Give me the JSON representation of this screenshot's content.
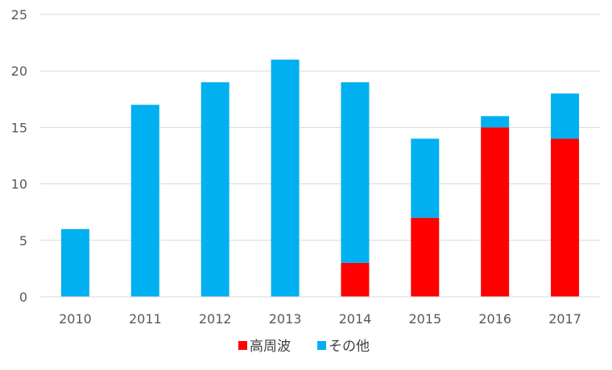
{
  "chart_data": {
    "type": "bar",
    "stacked": true,
    "categories": [
      "2010",
      "2011",
      "2012",
      "2013",
      "2014",
      "2015",
      "2016",
      "2017"
    ],
    "series": [
      {
        "name": "高周波",
        "color": "#ff0000",
        "values": [
          0,
          0,
          0,
          0,
          3,
          7,
          15,
          14
        ]
      },
      {
        "name": "その他",
        "color": "#00b0f0",
        "values": [
          6,
          17,
          19,
          21,
          16,
          7,
          1,
          4
        ]
      }
    ],
    "yticks": [
      "0",
      "5",
      "10",
      "15",
      "20",
      "25"
    ],
    "ylim": [
      0,
      25
    ],
    "grid": true,
    "legend_position": "bottom"
  }
}
